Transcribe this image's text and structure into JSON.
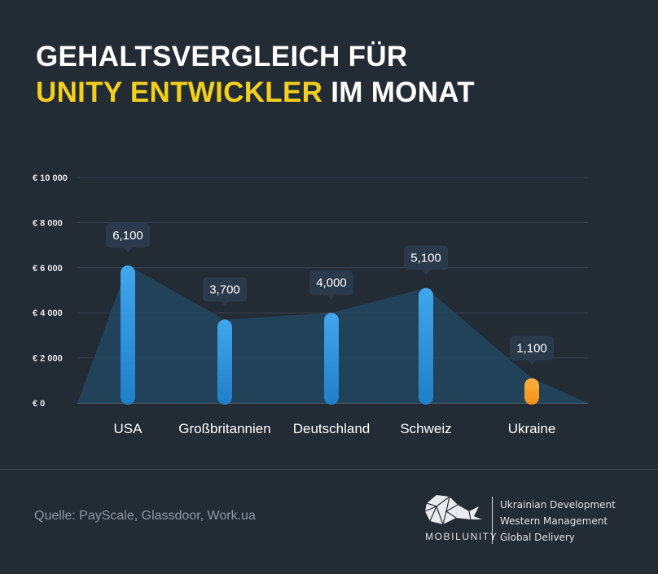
{
  "title": {
    "line1": "GEHALTSVERGLEICH FÜR",
    "line2_accent": "UNITY ENTWICKLER",
    "line2_rest": " IM MONAT"
  },
  "colors": {
    "background": "#232b35",
    "accent": "#f2cf1d",
    "bar": "#2f8fd8",
    "bar_highlight": "#f59a22",
    "area": "#22475f"
  },
  "chart_data": {
    "type": "bar",
    "categories": [
      "USA",
      "Großbritannien",
      "Deutschland",
      "Schweiz",
      "Ukraine"
    ],
    "values": [
      6100,
      3700,
      4000,
      5100,
      1100
    ],
    "value_labels": [
      "6,100",
      "3,700",
      "4,000",
      "5,100",
      "1,100"
    ],
    "highlight_index": 4,
    "ylim": [
      0,
      10000
    ],
    "yticks": [
      0,
      2000,
      4000,
      6000,
      8000,
      10000
    ],
    "ytick_labels": [
      "€ 0",
      "€ 2 000",
      "€ 4 000",
      "€ 6 000",
      "€ 8 000",
      "€ 10 000"
    ],
    "grid": true,
    "area_overlay": true
  },
  "footer": {
    "source": "Quelle: PayScale, Glassdoor, Work.ua",
    "brand_name": "MOBILUNITY",
    "brand_lines": [
      "Ukrainian Development",
      "Western Management",
      "Global Delivery"
    ],
    "logo_icon": "whale-logo-icon"
  }
}
